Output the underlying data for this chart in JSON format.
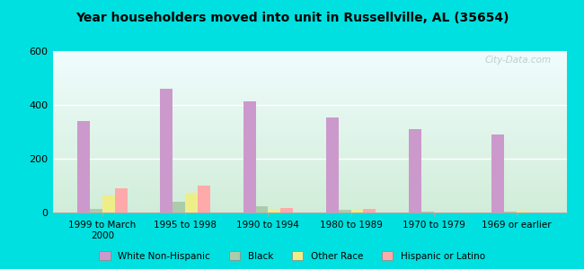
{
  "title": "Year householders moved into unit in Russellville, AL (35654)",
  "categories": [
    "1999 to March\n2000",
    "1995 to 1998",
    "1990 to 1994",
    "1980 to 1989",
    "1970 to 1979",
    "1969 or earlier"
  ],
  "series": {
    "White Non-Hispanic": [
      340,
      460,
      415,
      355,
      310,
      290
    ],
    "Black": [
      12,
      40,
      25,
      10,
      5,
      5
    ],
    "Other Race": [
      65,
      72,
      10,
      10,
      0,
      8
    ],
    "Hispanic or Latino": [
      90,
      100,
      16,
      14,
      0,
      0
    ]
  },
  "colors": {
    "White Non-Hispanic": "#cc99cc",
    "Black": "#aaccaa",
    "Other Race": "#eeee88",
    "Hispanic or Latino": "#ffaaaa"
  },
  "ylim": [
    0,
    600
  ],
  "yticks": [
    0,
    200,
    400,
    600
  ],
  "outer_bg": "#00e0e0",
  "bar_width": 0.15,
  "watermark": "City-Data.com",
  "gradient_colors": [
    "#f0f8f0",
    "#d0eedd"
  ],
  "bg_top": "#eaf8f8",
  "bg_bottom": "#d5eedc"
}
